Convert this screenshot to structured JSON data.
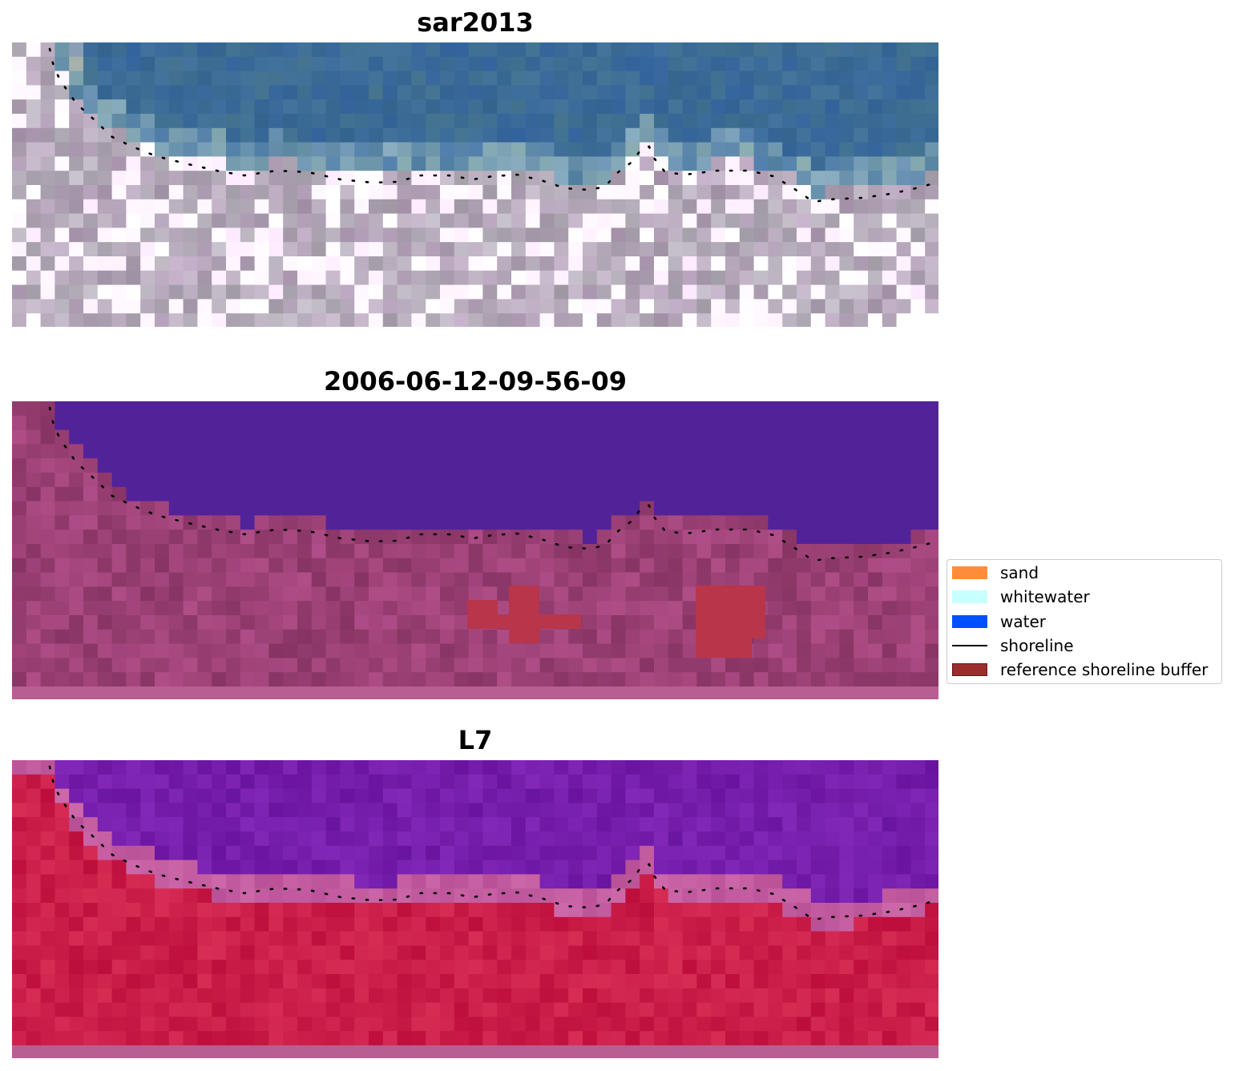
{
  "panels": [
    {
      "title": "sar2013",
      "kind": "rgb"
    },
    {
      "title": "2006-06-12-09-56-09",
      "kind": "classified"
    },
    {
      "title": "L7",
      "kind": "index"
    }
  ],
  "legend": {
    "items": [
      {
        "label": "sand",
        "type": "patch",
        "color": "#ff8c3a"
      },
      {
        "label": "whitewater",
        "type": "patch",
        "color": "#c8ffff"
      },
      {
        "label": "water",
        "type": "patch",
        "color": "#0050ff"
      },
      {
        "label": "shoreline",
        "type": "line",
        "color": "#000000"
      },
      {
        "label": "reference shoreline buffer",
        "type": "patch",
        "color": "#9b2d2d",
        "border": "#6e1414"
      }
    ]
  },
  "colors": {
    "water_deep_blue": "#3a6f9e",
    "classified_water": "#522299",
    "classified_land": "#8e3a72",
    "buffer_red": "#b8354a",
    "index_land_red": "#c41e4a",
    "index_water_purple": "#6e1ea0"
  }
}
